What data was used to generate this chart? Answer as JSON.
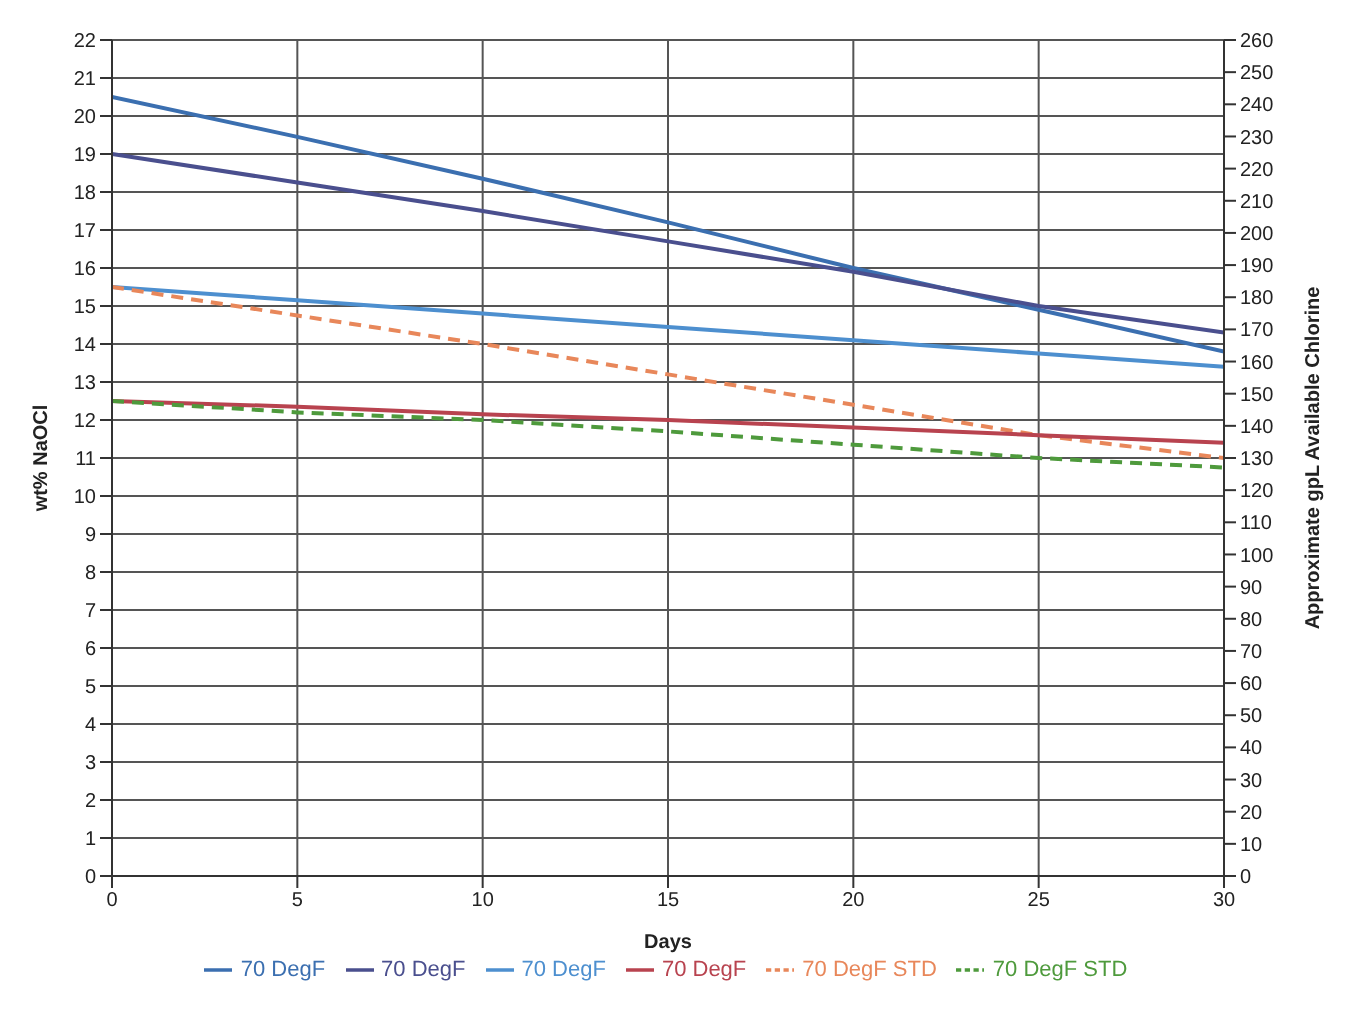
{
  "chart_data": {
    "type": "line",
    "xlabel": "Days",
    "ylabel": "wt% NaOCl",
    "y2label": "Approximate gpL Available Chlorine",
    "x": [
      0,
      5,
      10,
      15,
      20,
      25,
      30
    ],
    "series": [
      {
        "name": "70 DegF",
        "color": "#3b6fb0",
        "values": [
          20.5,
          19.45,
          18.35,
          17.2,
          16.0,
          14.9,
          13.8
        ]
      },
      {
        "name": "70 DegF",
        "color": "#4a4f8e",
        "values": [
          19.0,
          18.25,
          17.5,
          16.7,
          15.9,
          15.0,
          14.3
        ]
      },
      {
        "name": "70 DegF",
        "color": "#4d8fcf",
        "values": [
          15.5,
          15.15,
          14.8,
          14.45,
          14.1,
          13.75,
          13.4
        ]
      },
      {
        "name": "70 DegF STD",
        "color": "#e8875a",
        "line_style": "dashed",
        "values": [
          15.5,
          14.75,
          14.0,
          13.2,
          12.4,
          11.6,
          11.0
        ]
      },
      {
        "name": "70 DegF",
        "color": "#b8434f",
        "values": [
          12.5,
          12.35,
          12.15,
          12.0,
          11.8,
          11.6,
          11.4
        ]
      },
      {
        "name": "70 DegF STD",
        "color": "#4e9a3c",
        "line_style": "dashed",
        "values": [
          12.5,
          12.2,
          12.0,
          11.7,
          11.35,
          11.0,
          10.75
        ]
      }
    ],
    "xlim": [
      0,
      30
    ],
    "xticks": [
      0,
      5,
      10,
      15,
      20,
      25,
      30
    ],
    "ylim": [
      0,
      22
    ],
    "yticks": [
      0,
      1,
      2,
      3,
      4,
      5,
      6,
      7,
      8,
      9,
      10,
      11,
      12,
      13,
      14,
      15,
      16,
      17,
      18,
      19,
      20,
      21,
      22
    ],
    "y2lim": [
      0,
      260
    ],
    "y2ticks": [
      0,
      10,
      20,
      30,
      40,
      50,
      60,
      70,
      80,
      90,
      100,
      110,
      120,
      130,
      140,
      150,
      160,
      170,
      180,
      190,
      200,
      210,
      220,
      230,
      240,
      250,
      260
    ],
    "grid": true,
    "legend": "bottom",
    "marker": "none",
    "line_style": "solid"
  }
}
